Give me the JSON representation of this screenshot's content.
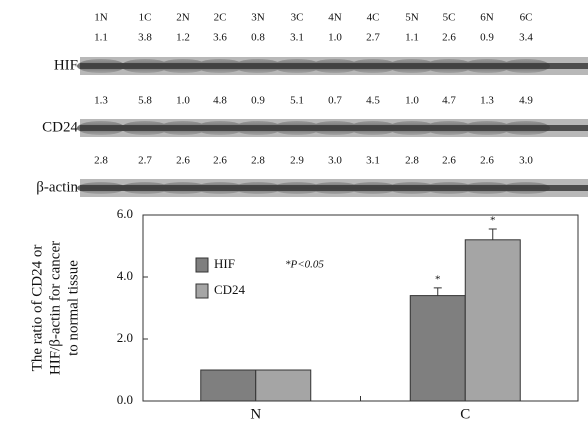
{
  "blot": {
    "lanes": [
      "1N",
      "1C",
      "2N",
      "2C",
      "3N",
      "3C",
      "4N",
      "4C",
      "5N",
      "5C",
      "6N",
      "6C"
    ],
    "rows": [
      {
        "label": "HIF",
        "values": [
          "1.1",
          "3.8",
          "1.2",
          "3.6",
          "0.8",
          "3.1",
          "1.0",
          "2.7",
          "1.1",
          "2.6",
          "0.9",
          "3.4"
        ]
      },
      {
        "label": "CD24",
        "values": [
          "1.3",
          "5.8",
          "1.0",
          "4.8",
          "0.9",
          "5.1",
          "0.7",
          "4.5",
          "1.0",
          "4.7",
          "1.3",
          "4.9"
        ]
      },
      {
        "label": "β-actin",
        "values": [
          "2.8",
          "2.7",
          "2.6",
          "2.6",
          "2.8",
          "2.9",
          "3.0",
          "3.1",
          "2.8",
          "2.6",
          "2.6",
          "3.0"
        ]
      }
    ]
  },
  "chart_data": {
    "type": "bar",
    "ylabel": [
      "The ratio of CD24 or",
      "HIF/β-actin for cancer",
      "to normal tissue"
    ],
    "note": "*P<0.05",
    "categories": [
      "N",
      "C"
    ],
    "series": [
      {
        "name": "HIF",
        "color": "#7f7f7f",
        "values": [
          1.0,
          3.4
        ],
        "errors": [
          null,
          0.25
        ],
        "significance": [
          null,
          "*"
        ]
      },
      {
        "name": "CD24",
        "color": "#a5a5a5",
        "values": [
          1.0,
          5.2
        ],
        "errors": [
          null,
          0.35
        ],
        "significance": [
          null,
          "*"
        ]
      }
    ],
    "ylim": [
      0,
      6
    ],
    "yticks": [
      {
        "value": 0,
        "label": "0.0"
      },
      {
        "value": 2,
        "label": "2.0"
      },
      {
        "value": 4,
        "label": "4.0"
      },
      {
        "value": 6,
        "label": "6.0"
      }
    ]
  }
}
